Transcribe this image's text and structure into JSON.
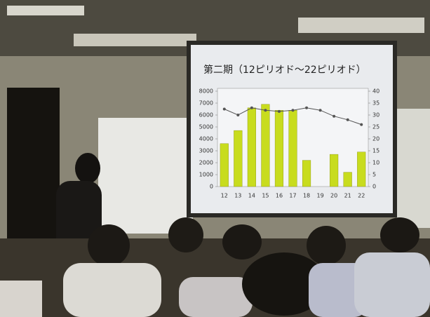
{
  "chart_data": {
    "type": "bar-line",
    "title": "第二期（12ピリオド～22ピリオド）",
    "categories": [
      "12",
      "13",
      "14",
      "15",
      "16",
      "17",
      "18",
      "19",
      "20",
      "21",
      "22"
    ],
    "series": [
      {
        "type": "bar",
        "color": "#c8dc1e",
        "values": [
          3600,
          4700,
          6600,
          6900,
          6400,
          6400,
          2200,
          null,
          2700,
          1200,
          2900
        ]
      },
      {
        "type": "line",
        "color": "#555555",
        "axis": "y2",
        "values": [
          32.5,
          30,
          33,
          32,
          31.5,
          32,
          33,
          32,
          29.5,
          28,
          26
        ]
      }
    ],
    "ylim": [
      0,
      8000
    ],
    "yticks": [
      0,
      1000,
      2000,
      3000,
      4000,
      5000,
      6000,
      7000,
      8000
    ],
    "y2lim": [
      0,
      40
    ],
    "y2ticks": [
      0,
      5,
      10,
      15,
      20,
      25,
      30,
      35,
      40
    ]
  }
}
